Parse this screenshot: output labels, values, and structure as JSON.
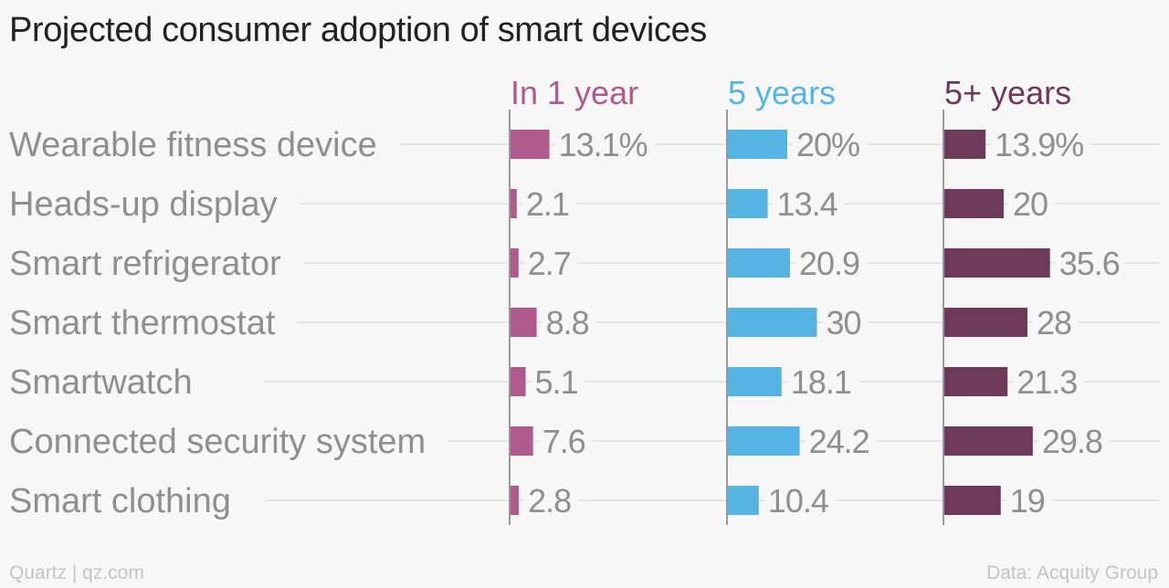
{
  "title": "Projected consumer adoption of smart devices",
  "footer": {
    "credit": "Quartz | qz.com",
    "source": "Data: Acquity Group"
  },
  "chart_data": {
    "type": "bar",
    "categories": [
      "Wearable fitness device",
      "Heads-up display",
      "Smart refrigerator",
      "Smart thermostat",
      "Smartwatch",
      "Connected security system",
      "Smart clothing"
    ],
    "series": [
      {
        "name": "In 1 year",
        "color": "#b05a8c",
        "values": [
          13.1,
          2.1,
          2.7,
          8.8,
          5.1,
          7.6,
          2.8
        ],
        "labels": [
          "13.1%",
          "2.1",
          "2.7",
          "8.8",
          "5.1",
          "7.6",
          "2.8"
        ]
      },
      {
        "name": "5 years",
        "color": "#55b4e4",
        "values": [
          20,
          13.4,
          20.9,
          30,
          18.1,
          24.2,
          10.4
        ],
        "labels": [
          "20%",
          "13.4",
          "20.9",
          "30",
          "18.1",
          "24.2",
          "10.4"
        ]
      },
      {
        "name": "5+ years",
        "color": "#6e3a5a",
        "values": [
          13.9,
          20,
          35.6,
          28,
          21.3,
          29.8,
          19
        ],
        "labels": [
          "13.9%",
          "20",
          "35.6",
          "28",
          "21.3",
          "29.8",
          "19"
        ]
      }
    ],
    "unit": "%",
    "grid": true,
    "orientation": "horizontal"
  }
}
